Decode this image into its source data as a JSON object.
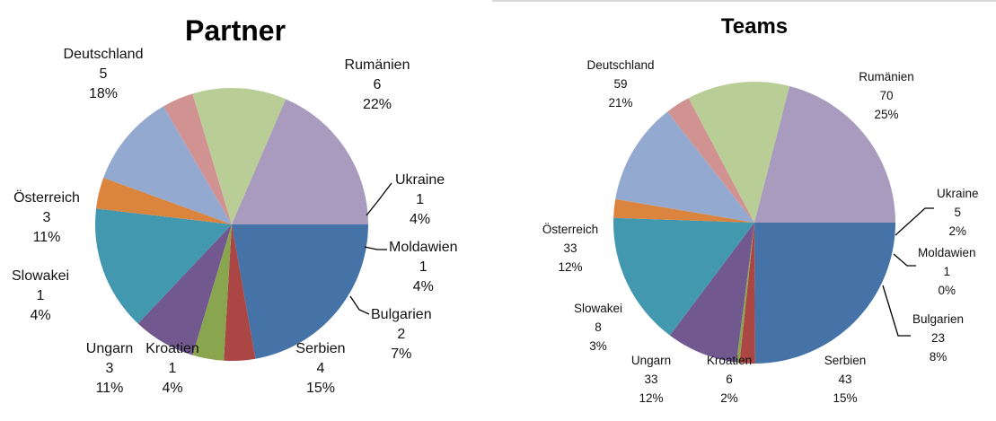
{
  "chart_data": [
    {
      "type": "pie",
      "title": "Partner",
      "categories": [
        "Rumänien",
        "Ukraine",
        "Moldawien",
        "Bulgarien",
        "Serbien",
        "Kroatien",
        "Ungarn",
        "Slowakei",
        "Österreich",
        "Deutschland"
      ],
      "values": [
        6,
        1,
        1,
        2,
        4,
        1,
        3,
        1,
        3,
        5
      ],
      "percent_labels": [
        "22%",
        "4%",
        "4%",
        "7%",
        "15%",
        "4%",
        "11%",
        "4%",
        "11%",
        "18%"
      ],
      "colors": [
        "#4572a7",
        "#aa4643",
        "#89a54e",
        "#71588f",
        "#4198af",
        "#db843d",
        "#93a9cf",
        "#d19392",
        "#b9cd96",
        "#a99bbd"
      ],
      "start_angle_deg": 0,
      "direction": "clockwise"
    },
    {
      "type": "pie",
      "title": "Teams",
      "categories": [
        "Rumänien",
        "Ukraine",
        "Moldawien",
        "Bulgarien",
        "Serbien",
        "Kroatien",
        "Ungarn",
        "Slowakei",
        "Österreich",
        "Deutschland"
      ],
      "values": [
        70,
        5,
        1,
        23,
        43,
        6,
        33,
        8,
        33,
        59
      ],
      "percent_labels": [
        "25%",
        "2%",
        "0%",
        "8%",
        "15%",
        "2%",
        "12%",
        "3%",
        "12%",
        "21%"
      ],
      "colors": [
        "#4572a7",
        "#aa4643",
        "#89a54e",
        "#71588f",
        "#4198af",
        "#db843d",
        "#93a9cf",
        "#d19392",
        "#b9cd96",
        "#a99bbd"
      ],
      "start_angle_deg": 0,
      "direction": "clockwise"
    }
  ]
}
